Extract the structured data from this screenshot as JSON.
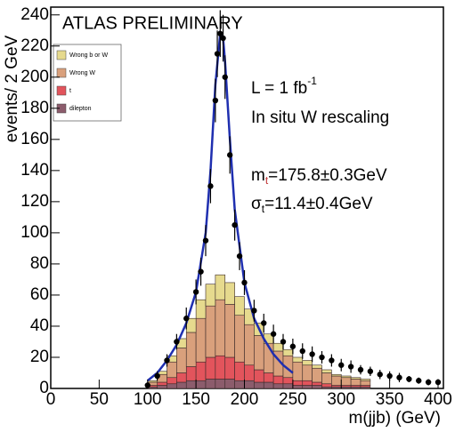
{
  "chart_data": {
    "type": "histogram",
    "title": "ATLAS PRELIMINARY",
    "x_label": "m(jjb) (GeV)",
    "y_label": "events/ 2 GeV",
    "annotations": [
      {
        "text": "L = 1 fb",
        "sup": "-1"
      },
      {
        "text": "In situ W rescaling"
      },
      {
        "text": "m",
        "sub": "t",
        "rest": "=175.8±0.3GeV"
      },
      {
        "text": "σ",
        "sub": "t",
        "rest": "=11.4±0.4GeV"
      }
    ],
    "xlim": [
      0,
      400
    ],
    "ylim": [
      0,
      245
    ],
    "xticks": [
      0,
      50,
      100,
      150,
      200,
      250,
      300,
      350,
      400
    ],
    "yticks": [
      0,
      20,
      40,
      60,
      80,
      100,
      120,
      140,
      160,
      180,
      200,
      220,
      240
    ],
    "bins": [
      100,
      110,
      120,
      130,
      140,
      150,
      160,
      170,
      180,
      190,
      200,
      210,
      220,
      230,
      240,
      250,
      260,
      270,
      280,
      290,
      300,
      310,
      320,
      330
    ],
    "series": [
      {
        "name": "Wrong b or W",
        "color": "#e6da8e",
        "values": [
          1,
          2,
          4,
          6,
          9,
          12,
          14,
          16,
          14,
          12,
          10,
          8,
          6,
          5,
          4,
          3,
          3,
          2,
          2,
          1,
          1,
          1,
          1
        ]
      },
      {
        "name": "Wrong W",
        "color": "#d9a07c",
        "values": [
          2,
          5,
          10,
          16,
          22,
          28,
          33,
          36,
          34,
          30,
          26,
          22,
          19,
          16,
          14,
          12,
          10,
          9,
          7,
          6,
          5,
          4,
          3
        ]
      },
      {
        "name": "t",
        "color": "#e2545c",
        "values": [
          1,
          2,
          4,
          6,
          9,
          12,
          14,
          15,
          14,
          12,
          10,
          8,
          6,
          5,
          4,
          3,
          3,
          2,
          2,
          1,
          1,
          1,
          1
        ]
      },
      {
        "name": "dilepton",
        "color": "#8c5c6c",
        "values": [
          1,
          2,
          3,
          4,
          5,
          5,
          6,
          6,
          6,
          5,
          5,
          4,
          4,
          3,
          3,
          2,
          2,
          2,
          1,
          1,
          1,
          1,
          1
        ]
      }
    ],
    "data": {
      "color": "#000000",
      "x": [
        100,
        110,
        120,
        130,
        140,
        150,
        155,
        160,
        165,
        170,
        172,
        175,
        178,
        180,
        185,
        190,
        195,
        200,
        210,
        220,
        230,
        240,
        250,
        260,
        270,
        280,
        290,
        300,
        310,
        320,
        330,
        340,
        350,
        360,
        370,
        380,
        390,
        400
      ],
      "values": [
        2,
        8,
        18,
        30,
        45,
        62,
        75,
        95,
        130,
        185,
        215,
        228,
        225,
        200,
        150,
        105,
        85,
        68,
        50,
        42,
        35,
        30,
        27,
        24,
        22,
        20,
        18,
        15,
        14,
        12,
        11,
        9,
        8,
        7,
        6,
        5,
        4,
        4
      ],
      "errors": [
        1,
        3,
        4,
        5,
        7,
        8,
        9,
        10,
        11,
        14,
        15,
        15,
        15,
        14,
        12,
        10,
        9,
        8,
        7,
        6,
        6,
        5,
        5,
        5,
        5,
        4,
        4,
        4,
        4,
        3,
        3,
        3,
        3,
        3,
        2,
        2,
        2,
        2
      ]
    },
    "fit": {
      "color": "#1f2fb0",
      "x": [
        100,
        110,
        120,
        130,
        140,
        150,
        160,
        165,
        170,
        175,
        178,
        180,
        185,
        190,
        200,
        210,
        220,
        230,
        240,
        250
      ],
      "values": [
        5,
        10,
        18,
        28,
        42,
        62,
        100,
        140,
        195,
        228,
        225,
        210,
        160,
        115,
        68,
        45,
        32,
        22,
        15,
        10
      ]
    }
  }
}
